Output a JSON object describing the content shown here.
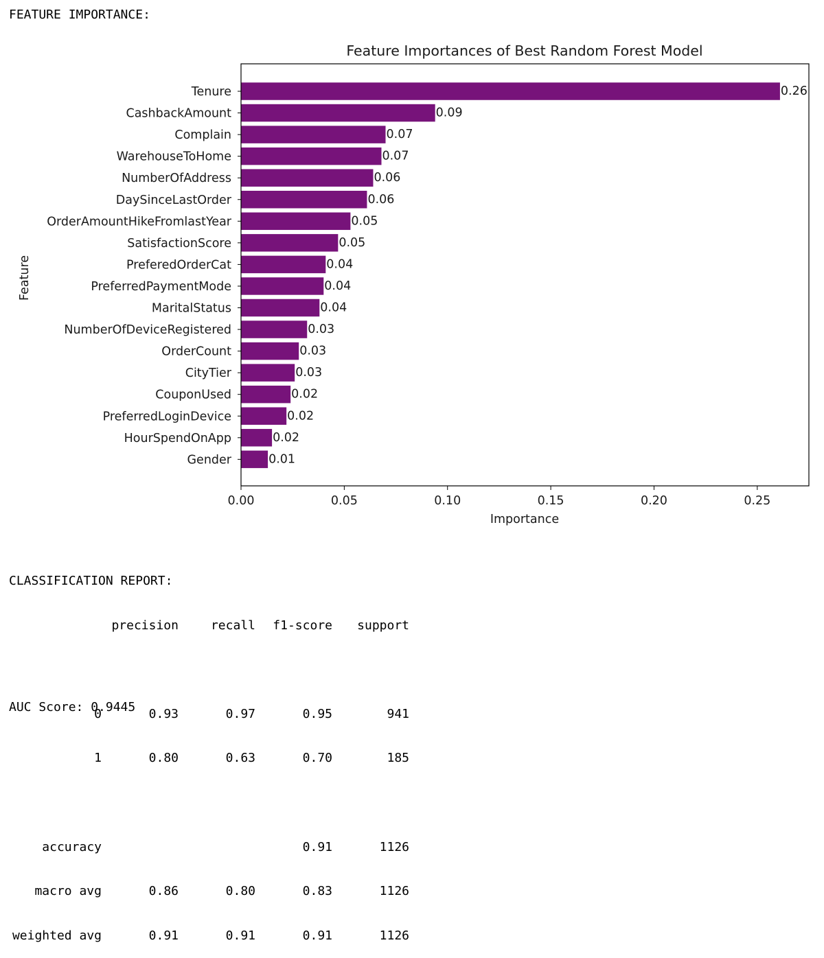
{
  "feature_importance_heading": "FEATURE IMPORTANCE:",
  "bar_color": "#77137A",
  "chart_data": {
    "type": "bar",
    "orientation": "horizontal",
    "title": "Feature Importances of Best Random Forest Model",
    "xlabel": "Importance",
    "ylabel": "Feature",
    "xlim": [
      0,
      0.275
    ],
    "xticks": [
      "0.00",
      "0.05",
      "0.10",
      "0.15",
      "0.20",
      "0.25"
    ],
    "grid": false,
    "categories": [
      "Tenure",
      "CashbackAmount",
      "Complain",
      "WarehouseToHome",
      "NumberOfAddress",
      "DaySinceLastOrder",
      "OrderAmountHikeFromlastYear",
      "SatisfactionScore",
      "PreferedOrderCat",
      "PreferredPaymentMode",
      "MaritalStatus",
      "NumberOfDeviceRegistered",
      "OrderCount",
      "CityTier",
      "CouponUsed",
      "PreferredLoginDevice",
      "HourSpendOnApp",
      "Gender"
    ],
    "values": [
      0.261,
      0.094,
      0.07,
      0.068,
      0.064,
      0.061,
      0.053,
      0.047,
      0.041,
      0.04,
      0.038,
      0.032,
      0.028,
      0.026,
      0.024,
      0.022,
      0.015,
      0.013
    ],
    "value_labels": [
      "0.26",
      "0.09",
      "0.07",
      "0.07",
      "0.06",
      "0.06",
      "0.05",
      "0.05",
      "0.04",
      "0.04",
      "0.04",
      "0.03",
      "0.03",
      "0.03",
      "0.02",
      "0.02",
      "0.02",
      "0.01"
    ]
  },
  "classification_report": {
    "heading": "CLASSIFICATION REPORT:",
    "columns": [
      "precision",
      "recall",
      "f1-score",
      "support"
    ],
    "rows": [
      {
        "label": "0",
        "precision": "0.93",
        "recall": "0.97",
        "f1": "0.95",
        "support": "941"
      },
      {
        "label": "1",
        "precision": "0.80",
        "recall": "0.63",
        "f1": "0.70",
        "support": "185"
      },
      {
        "label": "accuracy",
        "precision": "",
        "recall": "",
        "f1": "0.91",
        "support": "1126"
      },
      {
        "label": "macro avg",
        "precision": "0.86",
        "recall": "0.80",
        "f1": "0.83",
        "support": "1126"
      },
      {
        "label": "weighted avg",
        "precision": "0.91",
        "recall": "0.91",
        "f1": "0.91",
        "support": "1126"
      }
    ]
  },
  "auc_line": "AUC Score: 0.9445"
}
